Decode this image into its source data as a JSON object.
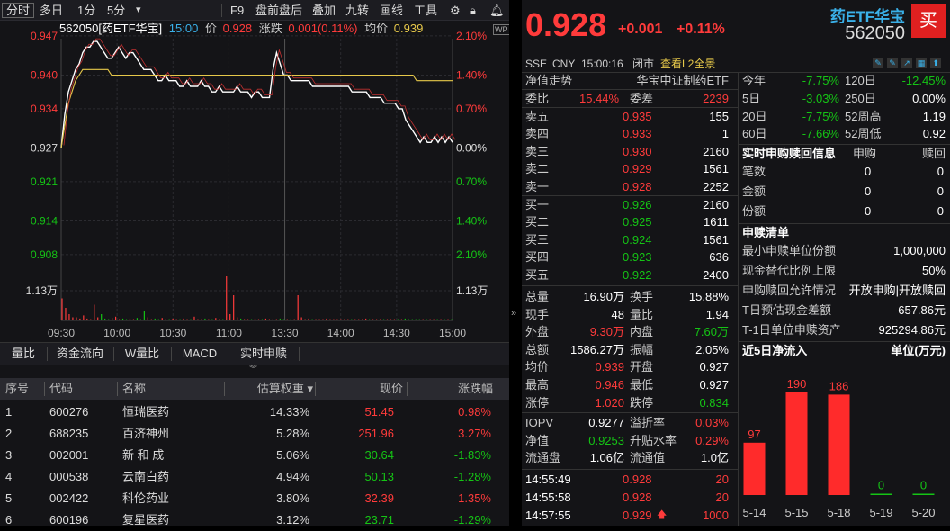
{
  "toolbar": {
    "items": [
      "分时",
      "多日",
      "1分",
      "5分"
    ],
    "dropdown": "▾",
    "right_items": [
      "F9",
      "盘前盘后",
      "叠加",
      "九转",
      "画线",
      "工具"
    ]
  },
  "chart_info": {
    "code_name": "562050[药ETF华宝]",
    "time": "15:00",
    "price_label": "价",
    "price": "0.928",
    "change_label": "涨跌",
    "change": "0.001(0.11%)",
    "avg_label": "均价",
    "avg": "0.939"
  },
  "chart_data": {
    "type": "line",
    "title": "",
    "y_left_ticks": [
      "0.947",
      "0.940",
      "0.934",
      "0.927",
      "0.921",
      "0.914",
      "0.908"
    ],
    "y_right_ticks": [
      "2.10%",
      "1.40%",
      "0.70%",
      "0.00%",
      "0.70%",
      "1.40%",
      "2.10%"
    ],
    "volume_tick": "1.13万",
    "x_ticks": [
      "09:30",
      "10:00",
      "10:30",
      "11:00",
      "13:30",
      "14:00",
      "14:30",
      "15:00"
    ],
    "ylim": [
      0.9075,
      0.9465
    ],
    "prev_close": 0.927,
    "series": [
      {
        "values": [
          0.927,
          0.933,
          0.937,
          0.939,
          0.941,
          0.942,
          0.944,
          0.945,
          0.945,
          0.946,
          0.946,
          0.945,
          0.944,
          0.943,
          0.943,
          0.944,
          0.945,
          0.944,
          0.943,
          0.944,
          0.944,
          0.943,
          0.942,
          0.941,
          0.941,
          0.941,
          0.94,
          0.939,
          0.939,
          0.94,
          0.939,
          0.939,
          0.939,
          0.938,
          0.938,
          0.939,
          0.938,
          0.938,
          0.938,
          0.939,
          0.938,
          0.938,
          0.937,
          0.937,
          0.938,
          0.937,
          0.937,
          0.937,
          0.937,
          0.938,
          0.937,
          0.937,
          0.937,
          0.936,
          0.937,
          0.937,
          0.936,
          0.936,
          0.936,
          0.941,
          0.944,
          0.942,
          0.94,
          0.94,
          0.939,
          0.939,
          0.939,
          0.939,
          0.939,
          0.939,
          0.938,
          0.938,
          0.938,
          0.938,
          0.938,
          0.938,
          0.938,
          0.938,
          0.938,
          0.938,
          0.938,
          0.937,
          0.937,
          0.937,
          0.937,
          0.937,
          0.936,
          0.936,
          0.936,
          0.936,
          0.935,
          0.935,
          0.935,
          0.935,
          0.934,
          0.934,
          0.932,
          0.931,
          0.93,
          0.929,
          0.928,
          0.929,
          0.928,
          0.928,
          0.929,
          0.928,
          0.929,
          0.928,
          0.929,
          0.928
        ]
      },
      {
        "values": [
          0.927,
          0.931,
          0.935,
          0.937,
          0.939,
          0.94,
          0.941,
          0.941,
          0.941,
          0.941,
          0.941,
          0.941,
          0.941,
          0.941,
          0.94,
          0.94,
          0.94,
          0.94,
          0.94,
          0.94,
          0.94,
          0.94,
          0.94,
          0.94,
          0.94,
          0.94,
          0.94,
          0.94,
          0.94,
          0.94,
          0.94,
          0.94,
          0.94,
          0.94,
          0.94,
          0.94,
          0.94,
          0.94,
          0.94,
          0.94,
          0.94,
          0.94,
          0.94,
          0.94,
          0.94,
          0.94,
          0.94,
          0.94,
          0.94,
          0.94,
          0.94,
          0.94,
          0.94,
          0.94,
          0.94,
          0.94,
          0.94,
          0.94,
          0.94,
          0.94,
          0.94,
          0.94,
          0.94,
          0.94,
          0.94,
          0.94,
          0.94,
          0.94,
          0.94,
          0.94,
          0.94,
          0.94,
          0.94,
          0.94,
          0.94,
          0.94,
          0.94,
          0.94,
          0.94,
          0.94,
          0.94,
          0.94,
          0.94,
          0.94,
          0.94,
          0.94,
          0.94,
          0.94,
          0.94,
          0.94,
          0.94,
          0.94,
          0.94,
          0.94,
          0.94,
          0.94,
          0.94,
          0.94,
          0.94,
          0.939,
          0.939,
          0.939,
          0.939,
          0.939,
          0.939,
          0.939,
          0.939,
          0.939,
          0.939,
          0.939
        ]
      }
    ],
    "volumes": [
      0.35,
      0.2,
      0.1,
      0.05,
      0.05,
      0.03,
      0.08,
      0.03,
      0.02,
      0.25,
      0.05,
      0.1,
      0.03,
      0.02,
      0.04,
      0.06,
      0.02,
      0.03,
      0.02,
      0.03,
      0.02,
      0.04,
      0.02,
      0.15,
      0.05,
      0.02,
      0.03,
      0.02,
      0.04,
      0.02,
      0.02,
      0.03,
      0.02,
      0.02,
      0.03,
      0.02,
      0.02,
      0.06,
      0.02,
      0.02,
      0.03,
      0.02,
      0.02,
      0.04,
      0.02,
      0.02,
      0.7,
      0.1,
      0.4,
      0.05,
      0.03,
      0.02,
      0.02,
      0.02,
      0.03,
      0.02,
      0.02,
      0.03,
      0.02,
      0.02,
      0.02,
      0.03,
      0.02,
      0.02,
      0.02,
      0.02,
      0.4,
      0.05,
      0.02,
      0.03,
      0.02,
      0.02,
      0.02,
      0.02,
      0.03,
      0.02,
      0.02,
      0.02,
      0.02,
      0.02,
      0.02,
      0.02,
      0.02,
      0.02,
      0.02,
      0.03,
      0.02,
      0.02,
      0.02,
      0.02,
      0.02,
      0.02,
      0.02,
      0.02,
      0.02,
      0.02,
      0.03,
      0.02,
      0.02,
      0.02,
      0.02,
      0.02,
      0.02,
      0.02,
      0.02,
      0.02,
      0.02,
      0.02,
      0.02,
      0.02
    ]
  },
  "tabs": [
    "量比",
    "资金流向",
    "W量比",
    "MACD",
    "实时申赎"
  ],
  "table": {
    "headers": [
      "序号",
      "代码",
      "名称",
      "估算权重 ▾",
      "现价",
      "涨跌幅"
    ],
    "rows": [
      {
        "idx": "1",
        "code": "600276",
        "name": "恒瑞医药",
        "weight": "14.33%",
        "price": "51.45",
        "chg": "0.98%",
        "dir": "up"
      },
      {
        "idx": "2",
        "code": "688235",
        "name": "百济神州",
        "weight": "5.28%",
        "price": "251.96",
        "chg": "3.27%",
        "dir": "up"
      },
      {
        "idx": "3",
        "code": "002001",
        "name": "新 和 成",
        "weight": "5.06%",
        "price": "30.64",
        "chg": "-1.83%",
        "dir": "down"
      },
      {
        "idx": "4",
        "code": "000538",
        "name": "云南白药",
        "weight": "4.94%",
        "price": "50.13",
        "chg": "-1.28%",
        "dir": "down"
      },
      {
        "idx": "5",
        "code": "002422",
        "name": "科伦药业",
        "weight": "3.80%",
        "price": "32.39",
        "chg": "1.35%",
        "dir": "up"
      },
      {
        "idx": "6",
        "code": "600196",
        "name": "复星医药",
        "weight": "3.12%",
        "price": "23.71",
        "chg": "-1.29%",
        "dir": "down"
      }
    ]
  },
  "quote": {
    "price": "0.928",
    "change": "+0.001",
    "change_pct": "+0.11%",
    "name": "药ETF华宝",
    "code": "562050",
    "buy_label": "买",
    "exchange": "SSE",
    "currency": "CNY",
    "time": "15:00:16",
    "status": "闭市",
    "l2_link": "查看L2全景"
  },
  "trend": {
    "title": "净值走势",
    "index_name": "华宝中证制药ETF"
  },
  "order_ratio": {
    "ratio_label": "委比",
    "ratio": "15.44%",
    "diff_label": "委差",
    "diff": "2239"
  },
  "asks": [
    {
      "label": "卖五",
      "price": "0.935",
      "vol": "155"
    },
    {
      "label": "卖四",
      "price": "0.933",
      "vol": "1"
    },
    {
      "label": "卖三",
      "price": "0.930",
      "vol": "2160"
    },
    {
      "label": "卖二",
      "price": "0.929",
      "vol": "1561"
    },
    {
      "label": "卖一",
      "price": "0.928",
      "vol": "2252"
    }
  ],
  "bids": [
    {
      "label": "买一",
      "price": "0.926",
      "vol": "2160"
    },
    {
      "label": "买二",
      "price": "0.925",
      "vol": "1611"
    },
    {
      "label": "买三",
      "price": "0.924",
      "vol": "1561"
    },
    {
      "label": "买四",
      "price": "0.923",
      "vol": "636"
    },
    {
      "label": "买五",
      "price": "0.922",
      "vol": "2400"
    }
  ],
  "stats": [
    {
      "l1": "总量",
      "v1": "16.90万",
      "c1": "white",
      "l2": "换手",
      "v2": "15.88%",
      "c2": "white"
    },
    {
      "l1": "现手",
      "v1": "48",
      "c1": "white",
      "l2": "量比",
      "v2": "1.94",
      "c2": "white"
    },
    {
      "l1": "外盘",
      "v1": "9.30万",
      "c1": "red",
      "l2": "内盘",
      "v2": "7.60万",
      "c2": "green"
    },
    {
      "l1": "总额",
      "v1": "1586.27万",
      "c1": "white",
      "l2": "振幅",
      "v2": "2.05%",
      "c2": "white"
    },
    {
      "l1": "均价",
      "v1": "0.939",
      "c1": "red",
      "l2": "开盘",
      "v2": "0.927",
      "c2": "white"
    },
    {
      "l1": "最高",
      "v1": "0.946",
      "c1": "red",
      "l2": "最低",
      "v2": "0.927",
      "c2": "white"
    },
    {
      "l1": "涨停",
      "v1": "1.020",
      "c1": "red",
      "l2": "跌停",
      "v2": "0.834",
      "c2": "green"
    }
  ],
  "iopv": [
    {
      "l1": "IOPV",
      "v1": "0.9277",
      "c1": "white",
      "l2": "溢折率",
      "v2": "0.03%",
      "c2": "red"
    },
    {
      "l1": "净值",
      "v1": "0.9253",
      "c1": "green",
      "l2": "升贴水率",
      "v2": "0.29%",
      "c2": "red"
    },
    {
      "l1": "流通盘",
      "v1": "1.06亿",
      "c1": "white",
      "l2": "流通值",
      "v2": "1.0亿",
      "c2": "white"
    }
  ],
  "ticks": [
    {
      "time": "14:55:49",
      "price": "0.928",
      "vol": "20",
      "arrow": ""
    },
    {
      "time": "14:55:58",
      "price": "0.928",
      "vol": "20",
      "arrow": ""
    },
    {
      "time": "14:57:55",
      "price": "0.929",
      "vol": "1000",
      "arrow": "🡅"
    }
  ],
  "perf": [
    {
      "l1": "今年",
      "v1": "-7.75%",
      "c1": "green",
      "l2": "120日",
      "v2": "-12.45%",
      "c2": "green"
    },
    {
      "l1": "5日",
      "v1": "-3.03%",
      "c1": "green",
      "l2": "250日",
      "v2": "0.00%",
      "c2": "white"
    },
    {
      "l1": "20日",
      "v1": "-7.75%",
      "c1": "green",
      "l2": "52周高",
      "v2": "1.19",
      "c2": "white"
    },
    {
      "l1": "60日",
      "v1": "-7.66%",
      "c1": "green",
      "l2": "52周低",
      "v2": "0.92",
      "c2": "white"
    }
  ],
  "subscribe": {
    "title": "实时申购赎回信息",
    "col1": "申购",
    "col2": "赎回",
    "rows": [
      {
        "label": "笔数",
        "a": "0",
        "b": "0"
      },
      {
        "label": "金额",
        "a": "0",
        "b": "0"
      },
      {
        "label": "份额",
        "a": "0",
        "b": "0"
      }
    ]
  },
  "redemption": {
    "title": "申赎清单",
    "rows": [
      {
        "label": "最小申赎单位份额",
        "value": "1,000,000"
      },
      {
        "label": "现金替代比例上限",
        "value": "50%"
      },
      {
        "label": "申购赎回允许情况",
        "value": "开放申购|开放赎回"
      },
      {
        "label": "T日预估现金差额",
        "value": "657.86元"
      },
      {
        "label": "T-1日单位申赎资产",
        "value": "925294.86元"
      }
    ]
  },
  "netflow": {
    "title": "近5日净流入",
    "unit": "单位(万元)",
    "chart_data": {
      "type": "bar",
      "categories": [
        "5-14",
        "5-15",
        "5-18",
        "5-19",
        "5-20"
      ],
      "values": [
        97,
        190,
        186,
        0,
        0
      ],
      "ylim": [
        0,
        200
      ]
    }
  },
  "colors": {
    "up": "#ff3b3b",
    "down": "#15c415",
    "price_line": "#ffffff",
    "avg_line": "#e6c84a",
    "accent": "#e8b83a"
  }
}
